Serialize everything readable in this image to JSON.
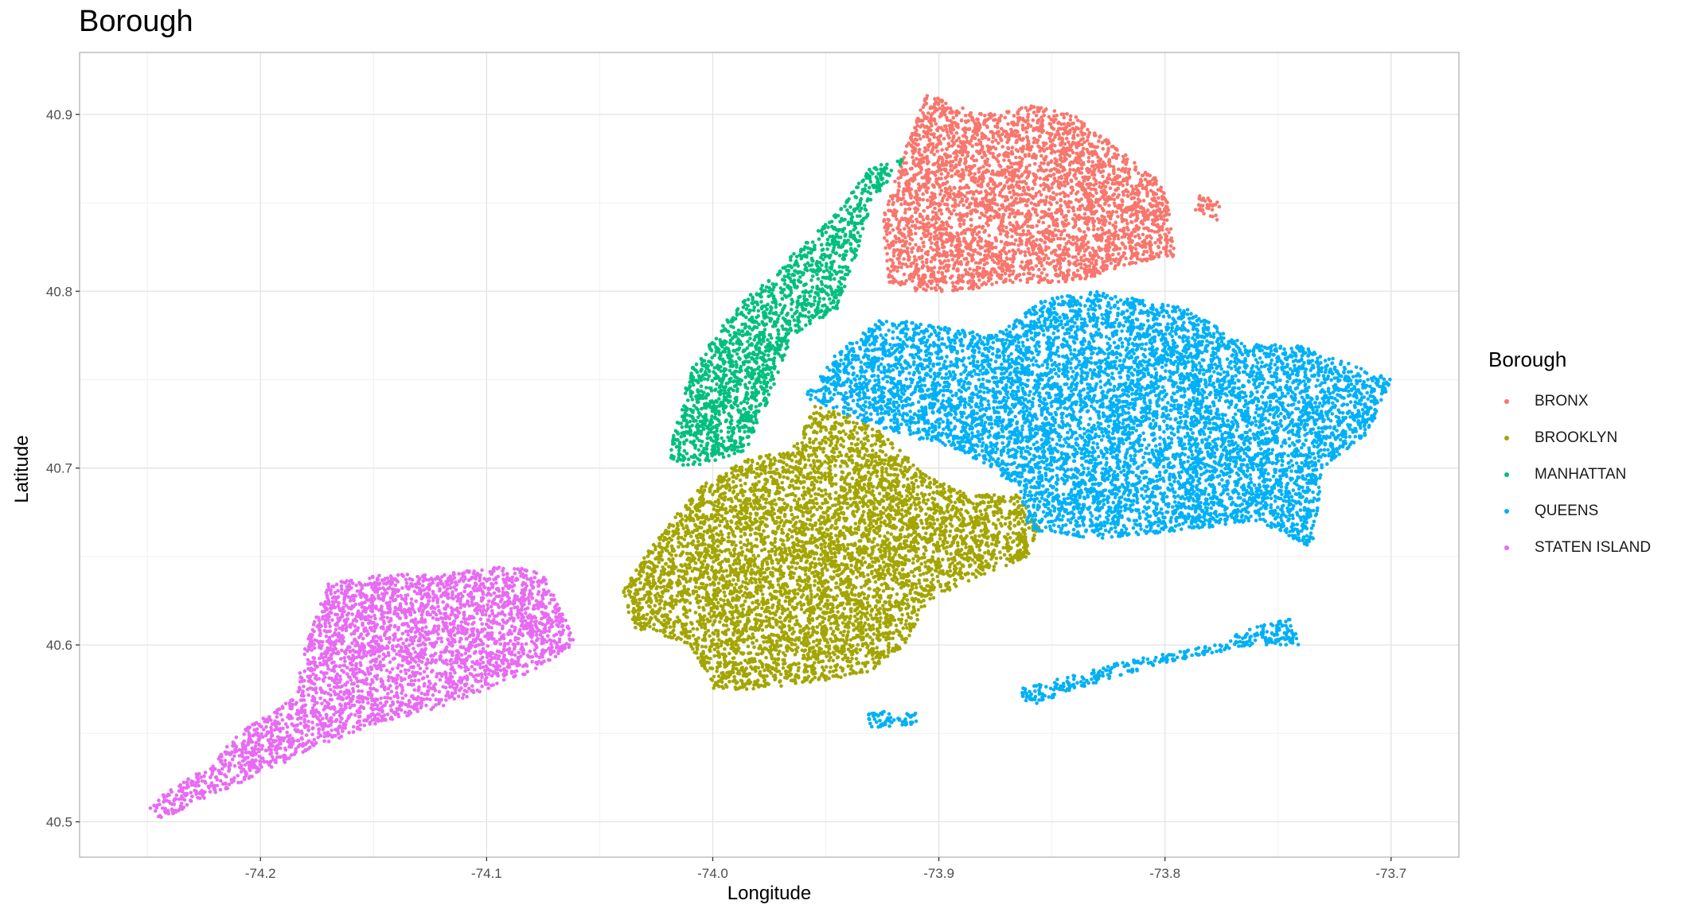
{
  "chart_data": {
    "type": "scatter",
    "title": "Borough",
    "xlabel": "Longitude",
    "ylabel": "Latitude",
    "xlim": [
      -74.28,
      -73.67
    ],
    "ylim": [
      40.48,
      40.935
    ],
    "x_ticks": [
      -74.2,
      -74.1,
      -74.0,
      -73.9,
      -73.8,
      -73.7
    ],
    "x_tick_labels": [
      "-74.2",
      "-74.1",
      "-74.0",
      "-73.9",
      "-73.8",
      "-73.7"
    ],
    "y_ticks": [
      40.5,
      40.6,
      40.7,
      40.8,
      40.9
    ],
    "y_tick_labels": [
      "40.5",
      "40.6",
      "40.7",
      "40.8",
      "40.9"
    ],
    "grid": true,
    "legend": {
      "title": "Borough",
      "placement": "right"
    },
    "series": [
      {
        "name": "BRONX",
        "color": "#F8766D",
        "regions": [
          [
            [
              -73.922,
              40.805
            ],
            [
              -73.925,
              40.84
            ],
            [
              -73.915,
              40.88
            ],
            [
              -73.905,
              40.913
            ],
            [
              -73.895,
              40.905
            ],
            [
              -73.875,
              40.9
            ],
            [
              -73.86,
              40.905
            ],
            [
              -73.84,
              40.9
            ],
            [
              -73.82,
              40.88
            ],
            [
              -73.8,
              40.86
            ],
            [
              -73.795,
              40.82
            ],
            [
              -73.815,
              40.815
            ],
            [
              -73.84,
              40.805
            ],
            [
              -73.87,
              40.805
            ],
            [
              -73.89,
              40.8
            ],
            [
              -73.91,
              40.8
            ]
          ],
          [
            [
              -73.785,
              40.855
            ],
            [
              -73.775,
              40.85
            ],
            [
              -73.777,
              40.84
            ],
            [
              -73.787,
              40.845
            ]
          ]
        ]
      },
      {
        "name": "BROOKLYN",
        "color": "#A3A500",
        "regions": [
          [
            [
              -74.04,
              40.63
            ],
            [
              -74.025,
              40.66
            ],
            [
              -74.005,
              40.69
            ],
            [
              -73.985,
              40.705
            ],
            [
              -73.965,
              40.71
            ],
            [
              -73.955,
              40.735
            ],
            [
              -73.94,
              40.73
            ],
            [
              -73.925,
              40.72
            ],
            [
              -73.905,
              40.695
            ],
            [
              -73.885,
              40.685
            ],
            [
              -73.865,
              40.685
            ],
            [
              -73.855,
              40.665
            ],
            [
              -73.86,
              40.65
            ],
            [
              -73.88,
              40.64
            ],
            [
              -73.905,
              40.625
            ],
            [
              -73.915,
              40.6
            ],
            [
              -73.93,
              40.585
            ],
            [
              -73.95,
              40.58
            ],
            [
              -73.98,
              40.575
            ],
            [
              -74.0,
              40.575
            ],
            [
              -74.01,
              40.6
            ],
            [
              -74.035,
              40.61
            ]
          ]
        ]
      },
      {
        "name": "MANHATTAN",
        "color": "#00BF7D",
        "regions": [
          [
            [
              -74.02,
              40.705
            ],
            [
              -74.015,
              40.73
            ],
            [
              -74.01,
              40.755
            ],
            [
              -73.99,
              40.79
            ],
            [
              -73.965,
              40.82
            ],
            [
              -73.945,
              40.845
            ],
            [
              -73.93,
              40.87
            ],
            [
              -73.915,
              40.875
            ],
            [
              -73.93,
              40.85
            ],
            [
              -73.935,
              40.825
            ],
            [
              -73.945,
              40.79
            ],
            [
              -73.965,
              40.775
            ],
            [
              -73.975,
              40.74
            ],
            [
              -73.985,
              40.71
            ],
            [
              -74.01,
              40.7
            ]
          ]
        ]
      },
      {
        "name": "QUEENS",
        "color": "#00B0F6",
        "regions": [
          [
            [
              -73.96,
              40.74
            ],
            [
              -73.945,
              40.765
            ],
            [
              -73.925,
              40.785
            ],
            [
              -73.9,
              40.78
            ],
            [
              -73.875,
              40.775
            ],
            [
              -73.855,
              40.795
            ],
            [
              -73.83,
              40.8
            ],
            [
              -73.79,
              40.79
            ],
            [
              -73.765,
              40.77
            ],
            [
              -73.74,
              40.77
            ],
            [
              -73.7,
              40.75
            ],
            [
              -73.71,
              40.72
            ],
            [
              -73.73,
              40.7
            ],
            [
              -73.735,
              40.655
            ],
            [
              -73.76,
              40.67
            ],
            [
              -73.79,
              40.665
            ],
            [
              -73.83,
              40.66
            ],
            [
              -73.86,
              40.665
            ],
            [
              -73.865,
              40.69
            ],
            [
              -73.89,
              40.71
            ],
            [
              -73.92,
              40.72
            ]
          ],
          [
            [
              -73.865,
              40.575
            ],
            [
              -73.82,
              40.59
            ],
            [
              -73.78,
              40.6
            ],
            [
              -73.76,
              40.61
            ],
            [
              -73.745,
              40.615
            ],
            [
              -73.74,
              40.6
            ],
            [
              -73.76,
              40.6
            ],
            [
              -73.8,
              40.59
            ],
            [
              -73.84,
              40.575
            ],
            [
              -73.86,
              40.565
            ]
          ],
          [
            [
              -73.932,
              40.562
            ],
            [
              -73.91,
              40.563
            ],
            [
              -73.91,
              40.555
            ],
            [
              -73.93,
              40.553
            ]
          ]
        ]
      },
      {
        "name": "STATEN ISLAND",
        "color": "#E76BF3",
        "regions": [
          [
            [
              -74.25,
              40.51
            ],
            [
              -74.225,
              40.53
            ],
            [
              -74.205,
              40.555
            ],
            [
              -74.185,
              40.57
            ],
            [
              -74.18,
              40.6
            ],
            [
              -74.17,
              40.635
            ],
            [
              -74.145,
              40.64
            ],
            [
              -74.12,
              40.64
            ],
            [
              -74.09,
              40.645
            ],
            [
              -74.075,
              40.64
            ],
            [
              -74.065,
              40.615
            ],
            [
              -74.06,
              40.6
            ],
            [
              -74.08,
              40.585
            ],
            [
              -74.1,
              40.575
            ],
            [
              -74.12,
              40.565
            ],
            [
              -74.15,
              40.555
            ],
            [
              -74.17,
              40.545
            ],
            [
              -74.195,
              40.53
            ],
            [
              -74.23,
              40.51
            ],
            [
              -74.245,
              40.5
            ]
          ]
        ]
      }
    ]
  }
}
